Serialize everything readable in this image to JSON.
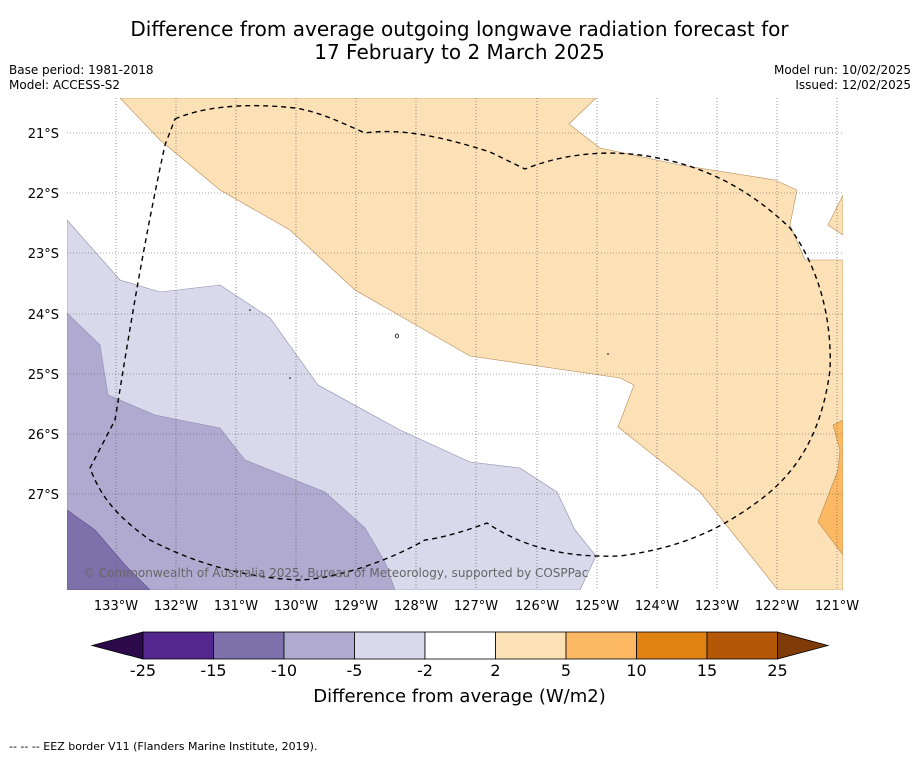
{
  "title_line1": "Difference from average outgoing longwave radiation forecast for",
  "title_line2": "17 February to 2 March 2025",
  "base_period": "Base period: 1981-2018",
  "model": "Model: ACCESS-S2",
  "model_run": "Model run: 10/02/2025",
  "issued": "Issued: 12/02/2025",
  "copyright": "© Commonwealth of Australia 2025, Bureau of Meteorology, supported by COSPPac",
  "footer": "--  --  -- EEZ border V11 (Flanders Marine Institute, 2019).",
  "latitude_labels": [
    "21°S",
    "22°S",
    "23°S",
    "24°S",
    "25°S",
    "26°S",
    "27°S"
  ],
  "longitude_labels": [
    "133°W",
    "132°W",
    "131°W",
    "130°W",
    "129°W",
    "128°W",
    "127°W",
    "126°W",
    "125°W",
    "124°W",
    "123°W",
    "122°W",
    "121°W"
  ],
  "colorbar": {
    "title": "Difference from average (W/m2)",
    "ticks": [
      "-25",
      "-15",
      "-10",
      "-5",
      "-2",
      "2",
      "5",
      "10",
      "15",
      "25"
    ],
    "colors": {
      "lt_-25": "#2d0a4b",
      "-25_-15": "#54278f",
      "-15_-10": "#7e70aa",
      "-10_-5": "#b0aad0",
      "-5_-2": "#d9d9eb",
      "-2_2": "#ffffff",
      "2_5": "#fde1b6",
      "5_10": "#fdb863",
      "10_15": "#e08214",
      "15_25": "#b35806",
      "gt_25": "#7f3b08"
    }
  }
}
